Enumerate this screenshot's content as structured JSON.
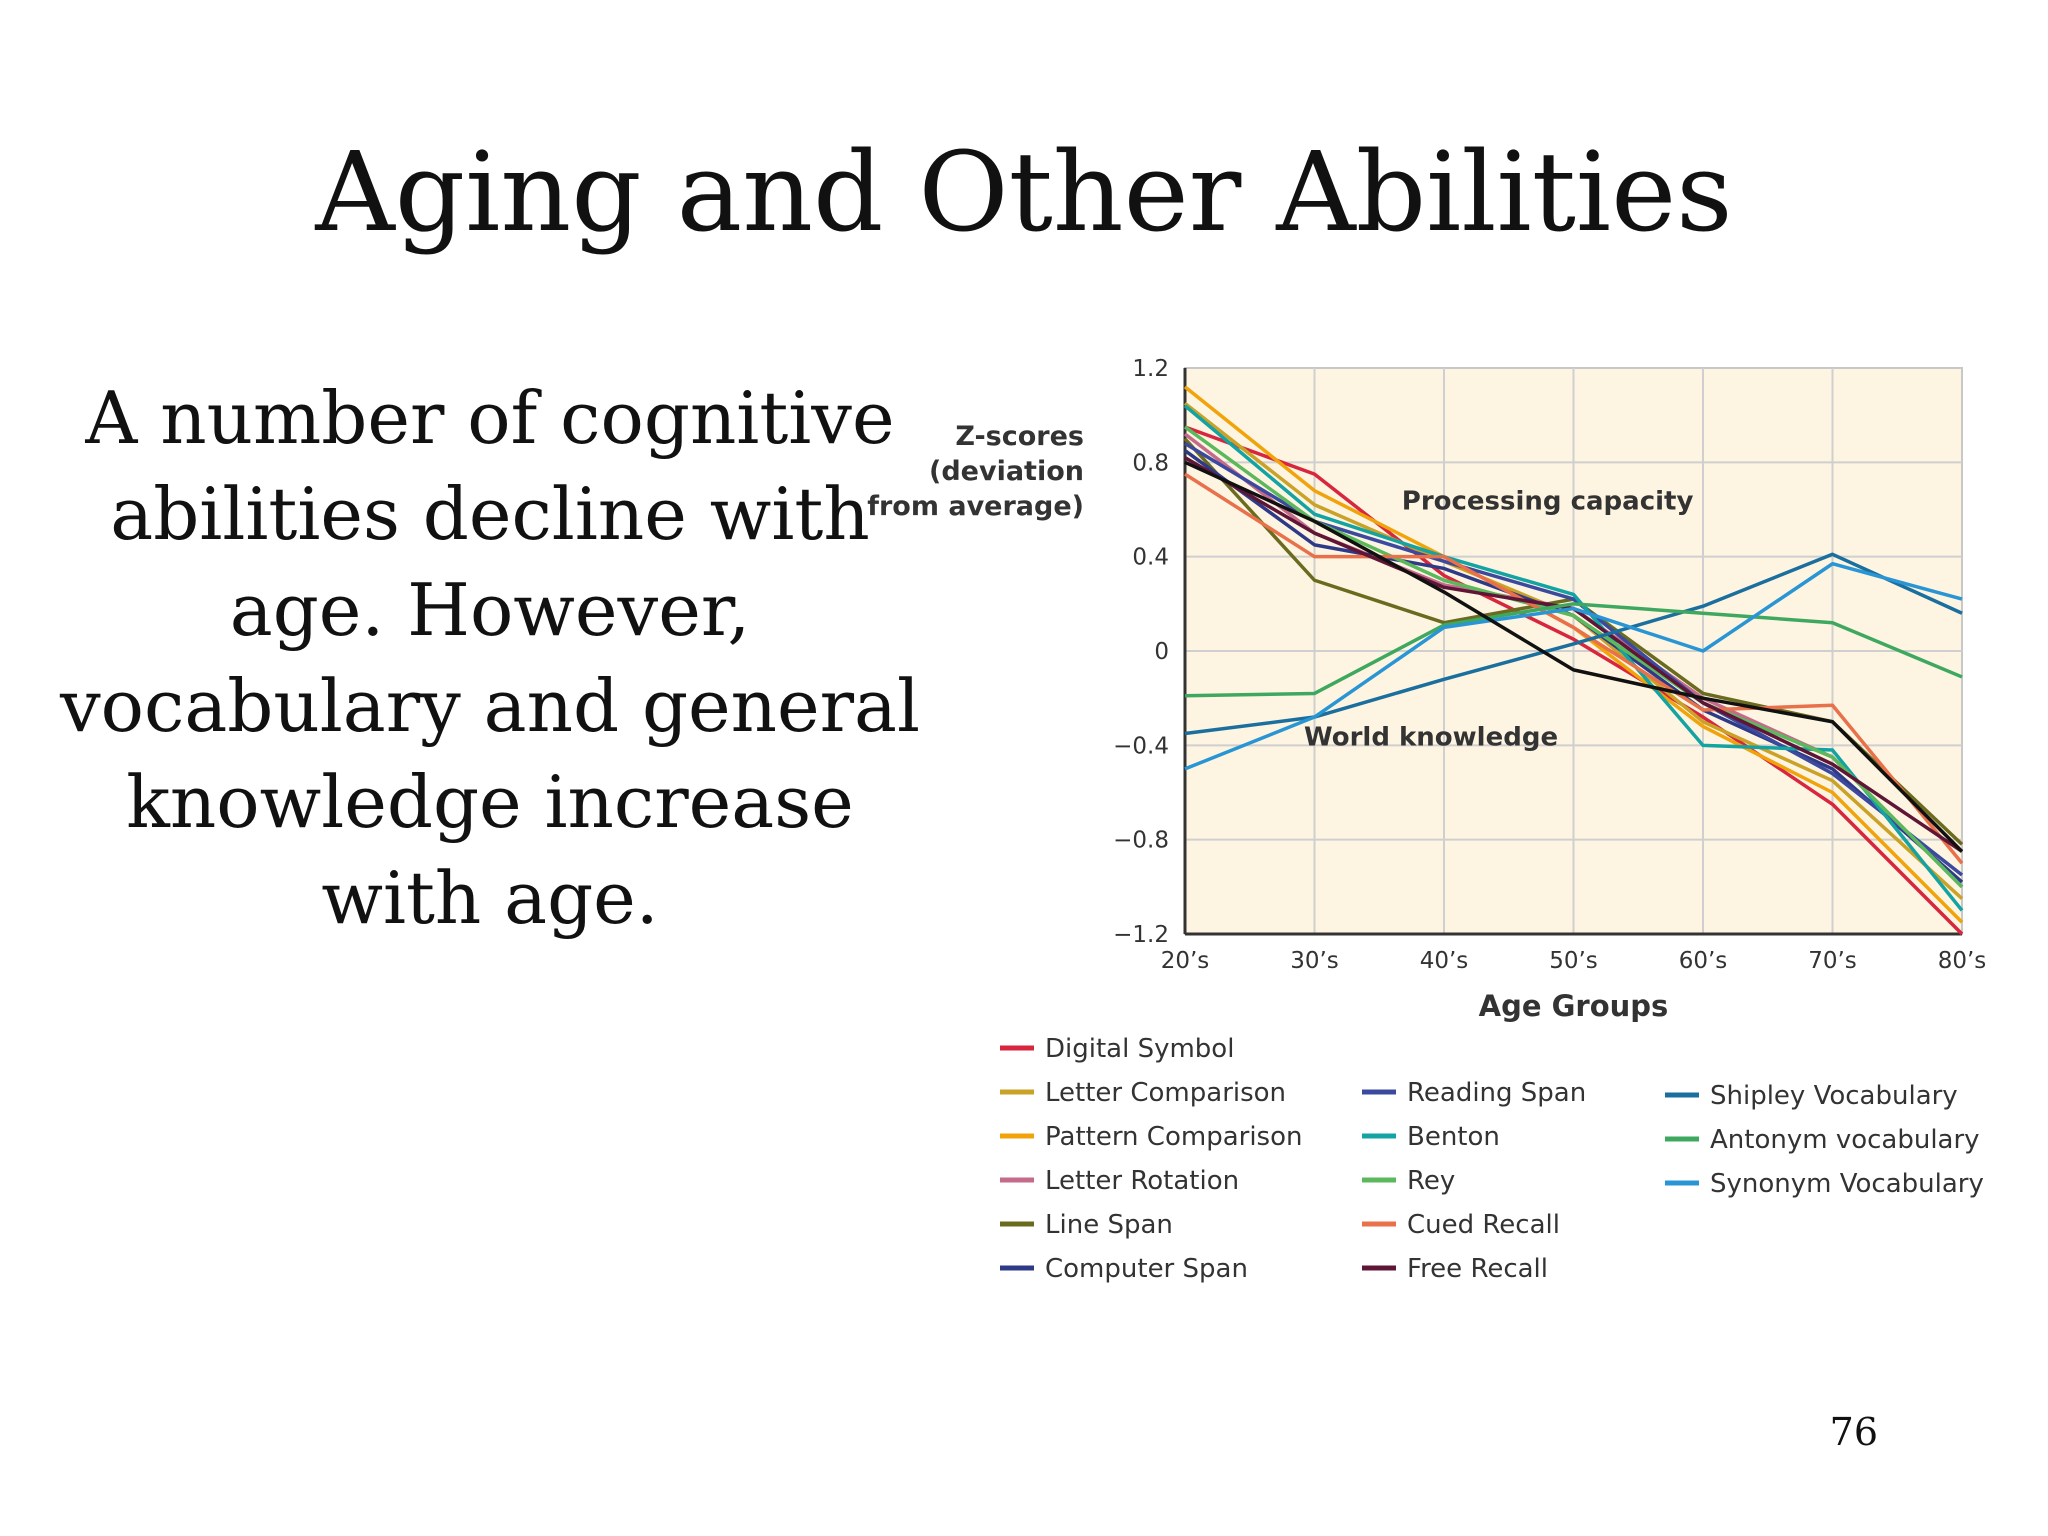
{
  "slide": {
    "title": "Aging and Other Abilities",
    "body": "A number of cognitive abilities decline with age. However, vocabulary and general knowledge increase with age.",
    "page_number": "76"
  },
  "chart_data": {
    "type": "line",
    "ylabel_lines": [
      "Z-scores",
      "(deviation",
      "from average)"
    ],
    "xlabel": "Age Groups",
    "categories": [
      "20’s",
      "30’s",
      "40’s",
      "50’s",
      "60’s",
      "70’s",
      "80’s"
    ],
    "ylim": [
      -1.2,
      1.2
    ],
    "yticks": [
      1.2,
      0.8,
      0.4,
      0,
      -0.4,
      -0.8,
      -1.2
    ],
    "ytick_labels": [
      "1.2",
      "0.8",
      "0.4",
      "0",
      "−0.4",
      "−0.8",
      "−1.2"
    ],
    "grid": true,
    "background": "#fdf5e1",
    "annotations": [
      {
        "text": "Processing capacity",
        "x": 2.8,
        "y": 0.6
      },
      {
        "text": "World knowledge",
        "x": 1.9,
        "y": -0.4
      }
    ],
    "series": [
      {
        "name": "Digital Symbol",
        "color": "#d7263d",
        "values": [
          0.95,
          0.75,
          0.32,
          0.05,
          -0.28,
          -0.65,
          -1.2
        ]
      },
      {
        "name": "Letter Comparison",
        "color": "#c9a227",
        "values": [
          1.05,
          0.62,
          0.38,
          0.15,
          -0.3,
          -0.55,
          -1.05
        ]
      },
      {
        "name": "Pattern Comparison",
        "color": "#f0a30a",
        "values": [
          1.12,
          0.68,
          0.4,
          0.1,
          -0.32,
          -0.6,
          -1.15
        ]
      },
      {
        "name": "Letter Rotation",
        "color": "#c46a8a",
        "values": [
          0.92,
          0.5,
          0.28,
          0.18,
          -0.2,
          -0.45,
          -1.0
        ]
      },
      {
        "name": "Line Span",
        "color": "#6b6b1f",
        "values": [
          0.9,
          0.3,
          0.12,
          0.22,
          -0.18,
          -0.3,
          -0.82
        ]
      },
      {
        "name": "Computer Span",
        "color": "#2e3a87",
        "values": [
          0.85,
          0.45,
          0.35,
          0.15,
          -0.25,
          -0.5,
          -0.98
        ]
      },
      {
        "name": "Reading Span",
        "color": "#3b4a9e",
        "values": [
          0.88,
          0.55,
          0.38,
          0.22,
          -0.22,
          -0.52,
          -0.95
        ]
      },
      {
        "name": "Benton",
        "color": "#14a3a3",
        "values": [
          1.04,
          0.58,
          0.4,
          0.24,
          -0.4,
          -0.42,
          -1.1
        ]
      },
      {
        "name": "Rey",
        "color": "#5cb85c",
        "values": [
          0.95,
          0.55,
          0.3,
          0.15,
          -0.22,
          -0.45,
          -1.0
        ]
      },
      {
        "name": "Cued Recall",
        "color": "#e8704a",
        "values": [
          0.75,
          0.4,
          0.4,
          0.1,
          -0.25,
          -0.23,
          -0.9
        ]
      },
      {
        "name": "Free Recall",
        "color": "#5e1536",
        "values": [
          0.82,
          0.5,
          0.27,
          0.18,
          -0.22,
          -0.48,
          -0.85
        ]
      },
      {
        "name": "Shipley Vocabulary",
        "color": "#1b6f9e",
        "values": [
          -0.35,
          -0.28,
          -0.12,
          0.03,
          0.19,
          0.41,
          0.16
        ]
      },
      {
        "name": "Antonym vocabulary",
        "color": "#3fa860",
        "values": [
          -0.19,
          -0.18,
          0.11,
          0.2,
          0.16,
          0.12,
          -0.11
        ]
      },
      {
        "name": "Synonym Vocabulary",
        "color": "#2a95d4",
        "values": [
          -0.5,
          -0.28,
          0.1,
          0.18,
          0.0,
          0.37,
          0.22
        ]
      },
      {
        "name": "",
        "color": "#111111",
        "values": [
          0.8,
          0.55,
          0.25,
          -0.08,
          -0.2,
          -0.3,
          -0.85
        ]
      }
    ]
  }
}
